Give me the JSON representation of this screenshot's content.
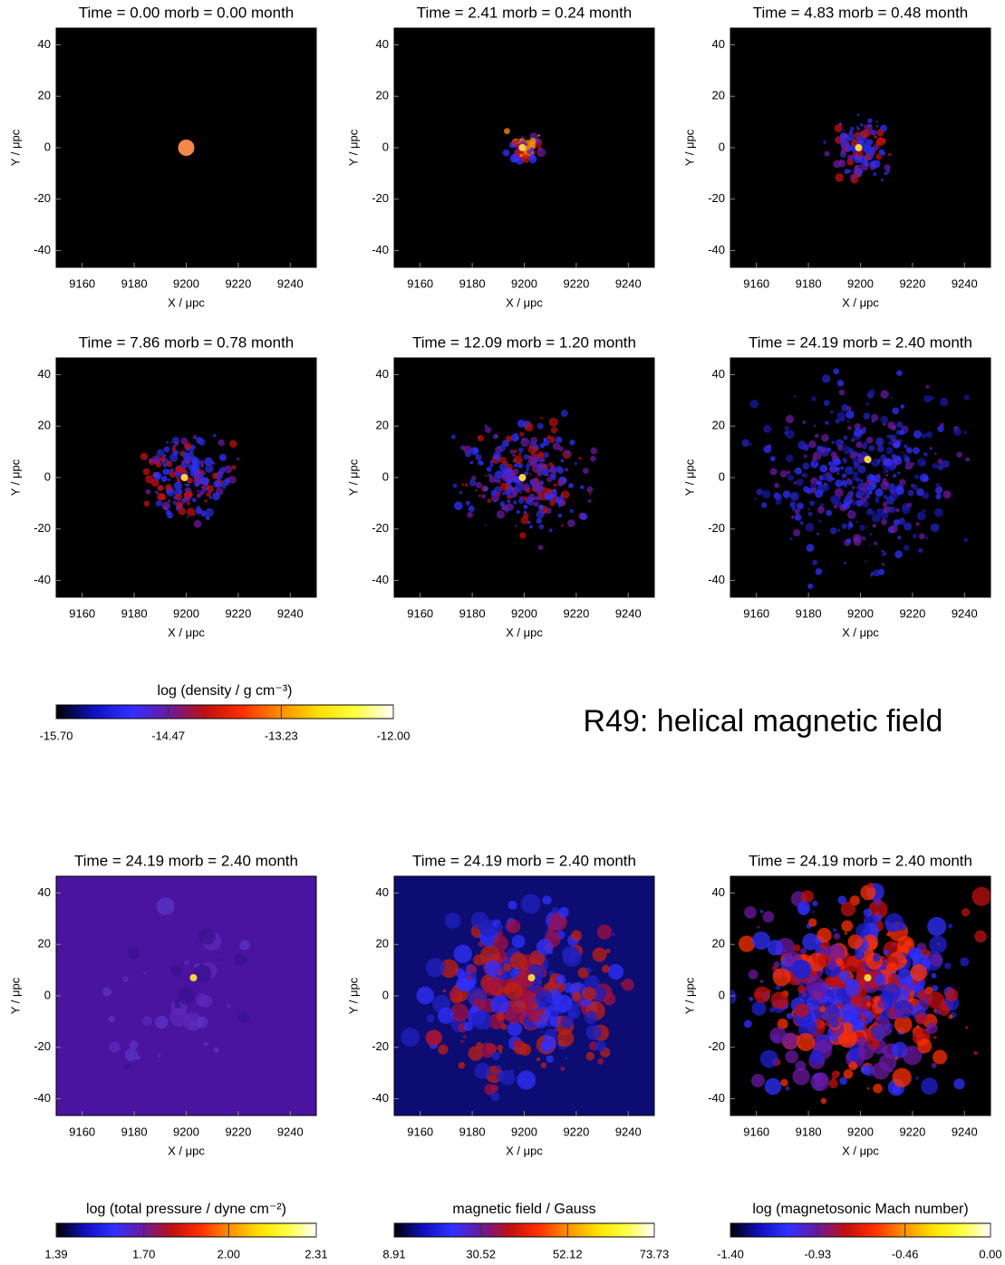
{
  "title": "R49: helical magnetic field",
  "chart_data": [
    {
      "type": "image",
      "title": "Time = 0.00 morb = 0.00 month",
      "xlabel": "X / μpc",
      "ylabel": "Y / μpc",
      "xlim": [
        9150,
        9250
      ],
      "xticks": [
        9160,
        9180,
        9200,
        9220,
        9240
      ],
      "ylim": [
        -46.5,
        46.5
      ],
      "yticks": [
        -40,
        -20,
        0,
        20,
        40
      ],
      "background": "#000000"
    },
    {
      "type": "image",
      "title": "Time = 2.41 morb = 0.24 month",
      "xlabel": "X / μpc",
      "ylabel": "Y / μpc",
      "xlim": [
        9150,
        9250
      ],
      "xticks": [
        9160,
        9180,
        9200,
        9220,
        9240
      ],
      "ylim": [
        -46.5,
        46.5
      ],
      "yticks": [
        -40,
        -20,
        0,
        20,
        40
      ],
      "background": "#000000"
    },
    {
      "type": "image",
      "title": "Time = 4.83 morb = 0.48 month",
      "xlabel": "X / μpc",
      "ylabel": "Y / μpc",
      "xlim": [
        9150,
        9250
      ],
      "xticks": [
        9160,
        9180,
        9200,
        9220,
        9240
      ],
      "ylim": [
        -46.5,
        46.5
      ],
      "yticks": [
        -40,
        -20,
        0,
        20,
        40
      ],
      "background": "#000000"
    },
    {
      "type": "image",
      "title": "Time = 7.86 morb = 0.78 month",
      "xlabel": "X / μpc",
      "ylabel": "Y / μpc",
      "xlim": [
        9150,
        9250
      ],
      "xticks": [
        9160,
        9180,
        9200,
        9220,
        9240
      ],
      "ylim": [
        -46.5,
        46.5
      ],
      "yticks": [
        -40,
        -20,
        0,
        20,
        40
      ],
      "background": "#000000"
    },
    {
      "type": "image",
      "title": "Time = 12.09 morb = 1.20 month",
      "xlabel": "X / μpc",
      "ylabel": "Y / μpc",
      "xlim": [
        9150,
        9250
      ],
      "xticks": [
        9160,
        9180,
        9200,
        9220,
        9240
      ],
      "ylim": [
        -46.5,
        46.5
      ],
      "yticks": [
        -40,
        -20,
        0,
        20,
        40
      ],
      "background": "#000000"
    },
    {
      "type": "image",
      "title": "Time = 24.19 morb = 2.40 month",
      "xlabel": "X / μpc",
      "ylabel": "Y / μpc",
      "xlim": [
        9150,
        9250
      ],
      "xticks": [
        9160,
        9180,
        9200,
        9220,
        9240
      ],
      "ylim": [
        -46.5,
        46.5
      ],
      "yticks": [
        -40,
        -20,
        0,
        20,
        40
      ],
      "background": "#000000"
    },
    {
      "type": "image",
      "title": "Time = 24.19 morb = 2.40 month",
      "xlabel": "X / μpc",
      "ylabel": "Y / μpc",
      "xlim": [
        9150,
        9250
      ],
      "xticks": [
        9160,
        9180,
        9200,
        9220,
        9240
      ],
      "ylim": [
        -46.5,
        46.5
      ],
      "yticks": [
        -40,
        -20,
        0,
        20,
        40
      ],
      "background": "#4a14a0"
    },
    {
      "type": "image",
      "title": "Time = 24.19 morb = 2.40 month",
      "xlabel": "X / μpc",
      "ylabel": "Y / μpc",
      "xlim": [
        9150,
        9250
      ],
      "xticks": [
        9160,
        9180,
        9200,
        9220,
        9240
      ],
      "ylim": [
        -46.5,
        46.5
      ],
      "yticks": [
        -40,
        -20,
        0,
        20,
        40
      ],
      "background": "#0c0c72"
    },
    {
      "type": "image",
      "title": "Time = 24.19 morb = 2.40 month",
      "xlabel": "X / μpc",
      "ylabel": "Y / μpc",
      "xlim": [
        9150,
        9250
      ],
      "xticks": [
        9160,
        9180,
        9200,
        9220,
        9240
      ],
      "ylim": [
        -46.5,
        46.5
      ],
      "yticks": [
        -40,
        -20,
        0,
        20,
        40
      ],
      "background": "#000000"
    },
    {
      "type": "colorbar",
      "label": "log (density / g cm⁻³)",
      "xlim": [
        -15.7,
        -12
      ],
      "xticks": [
        {
          "value": -15.7,
          "label": "-15.70"
        },
        {
          "value": -14.47,
          "label": "-14.47"
        },
        {
          "value": -13.23,
          "label": "-13.23"
        },
        {
          "value": -12,
          "label": "-12.00"
        }
      ],
      "colors": [
        "#000000",
        "#1010c0",
        "#3030ff",
        "#6a1aa0",
        "#c01010",
        "#ff3000",
        "#ff9000",
        "#ffe000",
        "#ffff40",
        "#ffffff"
      ]
    },
    {
      "type": "colorbar",
      "label": "log (total pressure / dyne cm⁻²)",
      "xlim": [
        1.39,
        2.31
      ],
      "xticks": [
        1.39,
        {
          "value": 1.7,
          "label": "1.70"
        },
        {
          "value": 2,
          "label": "2.00"
        },
        2.31
      ],
      "colors": [
        "#000000",
        "#1010c0",
        "#3030ff",
        "#6a1aa0",
        "#c01010",
        "#ff3000",
        "#ff9000",
        "#ffe000",
        "#ffff40",
        "#ffffff"
      ]
    },
    {
      "type": "colorbar",
      "label": "magnetic field / Gauss",
      "xlim": [
        8.91,
        73.73
      ],
      "xticks": [
        8.91,
        30.52,
        52.12,
        73.73
      ],
      "colors": [
        "#000000",
        "#1010c0",
        "#3030ff",
        "#6a1aa0",
        "#c01010",
        "#ff3000",
        "#ff9000",
        "#ffe000",
        "#ffff40",
        "#ffffff"
      ]
    },
    {
      "type": "colorbar",
      "label": "log (magnetosonic Mach number)",
      "xlim": [
        -1.4,
        0
      ],
      "xticks": [
        {
          "value": -1.4,
          "label": "-1.40"
        },
        -0.93,
        -0.46,
        {
          "value": 0,
          "label": "0.00"
        }
      ],
      "colors": [
        "#000000",
        "#1010c0",
        "#3030ff",
        "#6a1aa0",
        "#c01010",
        "#ff3000",
        "#ff9000",
        "#ffe000",
        "#ffff40",
        "#ffffff"
      ]
    }
  ]
}
